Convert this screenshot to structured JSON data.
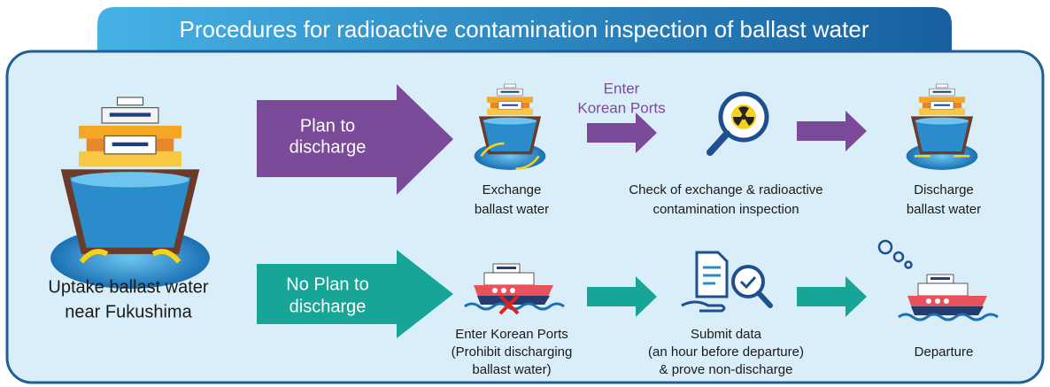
{
  "title": "Procedures for radioactive contamination inspection of ballast water",
  "source": {
    "caption": [
      "Uptake ballast water",
      "near Fukushima"
    ]
  },
  "upper": {
    "arrow_label": [
      "Plan to",
      "discharge"
    ],
    "port_label": [
      "Enter",
      "Korean Ports"
    ],
    "steps": [
      [
        "Exchange",
        "ballast water"
      ],
      [
        "Check of exchange & radioactive",
        "contamination inspection"
      ],
      [
        "Discharge",
        "ballast water"
      ]
    ]
  },
  "lower": {
    "arrow_label": [
      "No Plan to",
      "discharge"
    ],
    "steps": [
      [
        "Enter Korean Ports",
        "(Prohibit discharging",
        "ballast water)"
      ],
      [
        "Submit data",
        "(an hour before departure)",
        "& prove non-discharge"
      ],
      [
        "Departure"
      ]
    ]
  }
}
